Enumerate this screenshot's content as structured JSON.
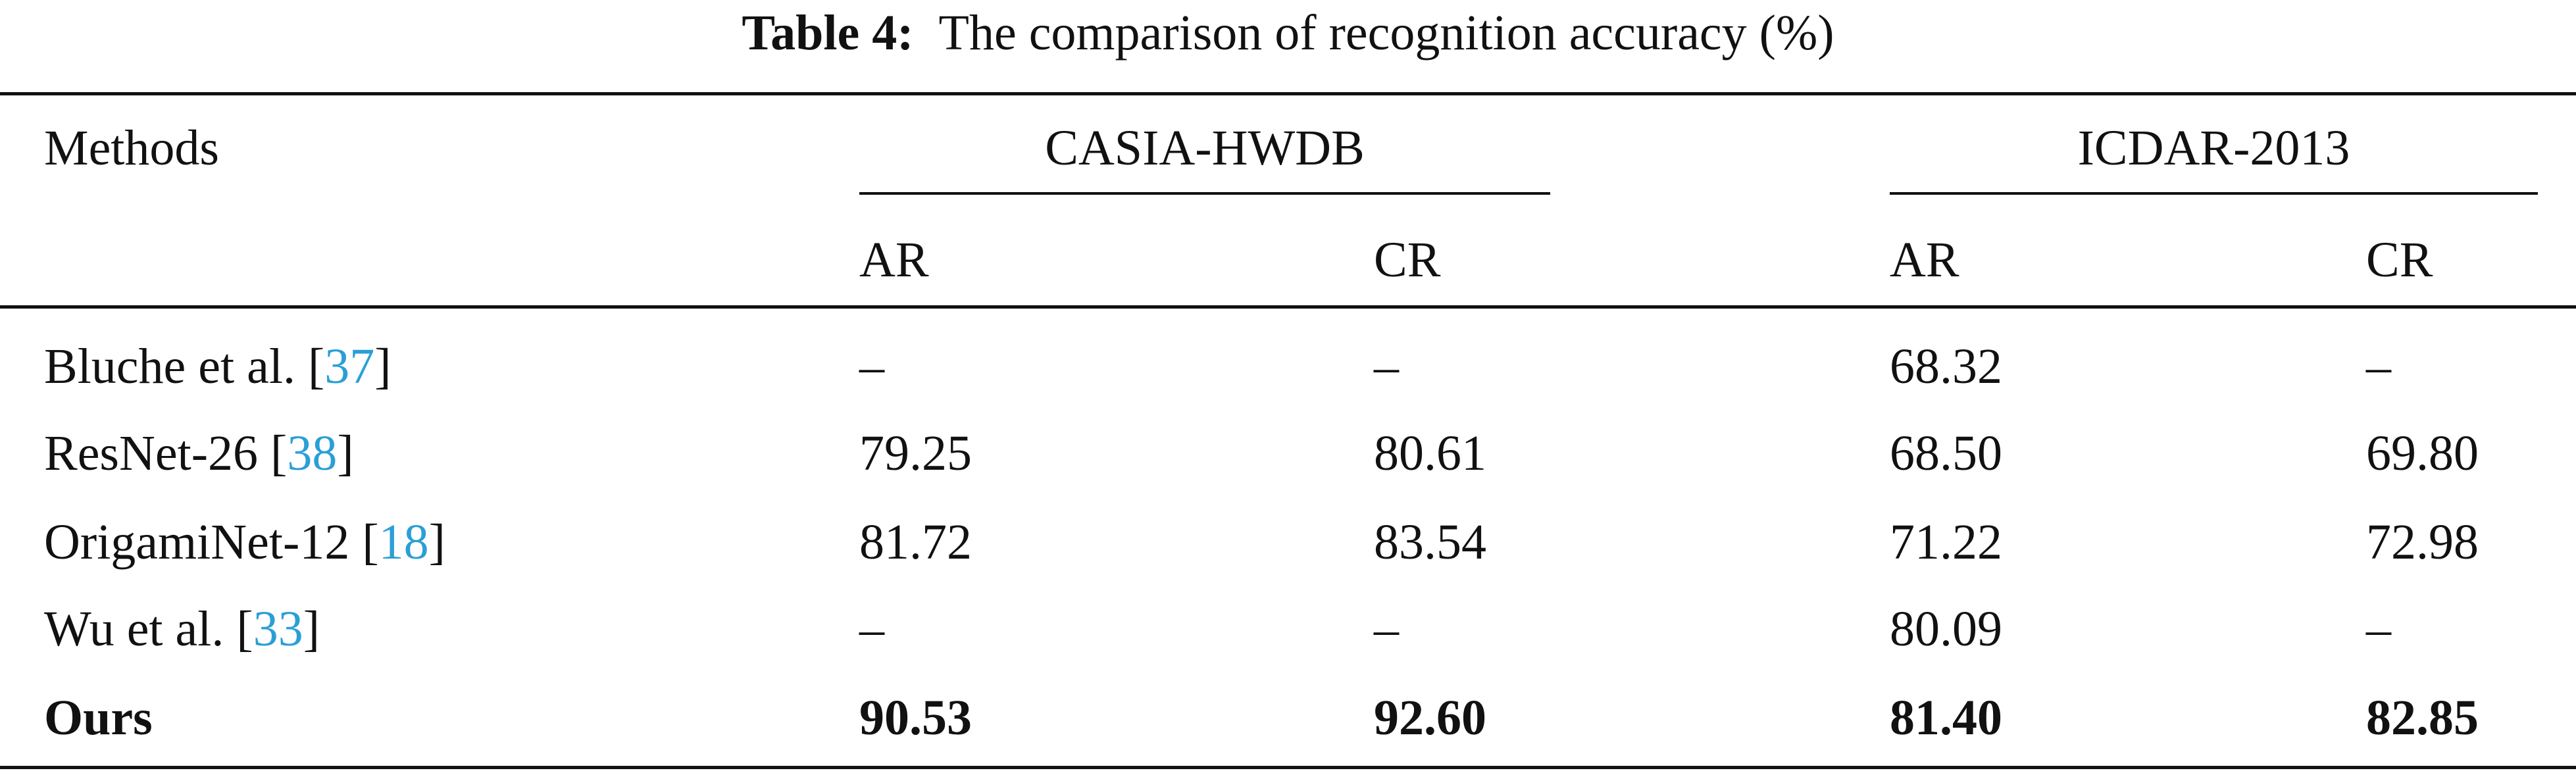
{
  "caption": {
    "label": "Table 4:",
    "text": "The comparison of recognition accuracy (%)"
  },
  "table": {
    "header": {
      "methods": "Methods",
      "groups": [
        "CASIA-HWDB",
        "ICDAR-2013"
      ],
      "subcolumns": [
        "AR",
        "CR",
        "AR",
        "CR"
      ]
    },
    "rows": [
      {
        "method": [
          "Bluche et al. [",
          "37",
          "]"
        ],
        "values": [
          "–",
          "–",
          "68.32",
          "–"
        ]
      },
      {
        "method": [
          "ResNet-26 [",
          "38",
          "]"
        ],
        "values": [
          "79.25",
          "80.61",
          "68.50",
          "69.80"
        ]
      },
      {
        "method": [
          "OrigamiNet-12 [",
          "18",
          "]"
        ],
        "values": [
          "81.72",
          "83.54",
          "71.22",
          "72.98"
        ]
      },
      {
        "method": [
          "Wu et al. [",
          "33",
          "]"
        ],
        "values": [
          "–",
          "–",
          "80.09",
          "–"
        ]
      },
      {
        "method": [
          "Ours"
        ],
        "values": [
          "90.53",
          "92.60",
          "81.40",
          "82.85"
        ],
        "bold": true
      }
    ]
  }
}
